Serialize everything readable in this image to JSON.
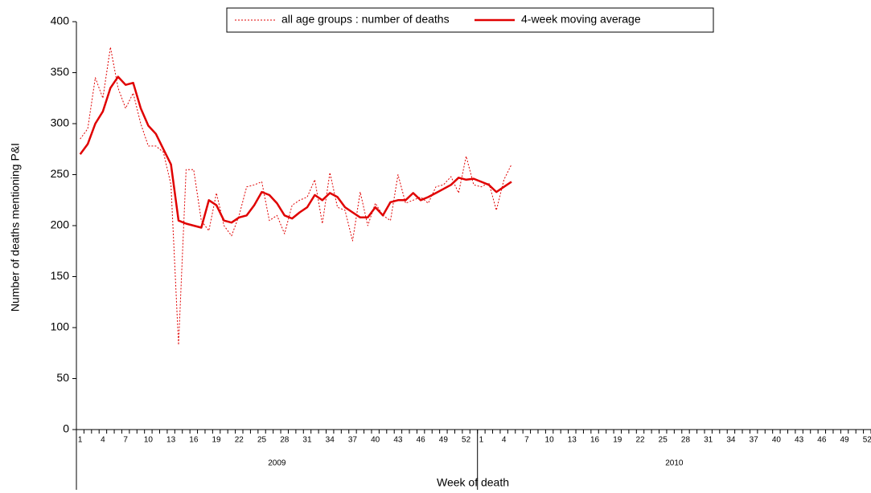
{
  "chart_data": {
    "type": "line",
    "y_label": "Number of deaths mentioning P&I",
    "x_label": "Week of death",
    "x_groups": [
      "2009",
      "2010"
    ],
    "x_group_sizes": [
      53,
      52
    ],
    "categories": [
      "1",
      null,
      null,
      "4",
      null,
      null,
      "7",
      null,
      null,
      "10",
      null,
      null,
      "13",
      null,
      null,
      "16",
      null,
      null,
      "19",
      null,
      null,
      "22",
      null,
      null,
      "25",
      null,
      null,
      "28",
      null,
      null,
      "31",
      null,
      null,
      "34",
      null,
      null,
      "37",
      null,
      null,
      "40",
      null,
      null,
      "43",
      null,
      null,
      "46",
      null,
      null,
      "49",
      null,
      null,
      "52",
      null,
      "1",
      null,
      null,
      "4",
      null,
      null,
      "7",
      null,
      null,
      "10",
      null,
      null,
      "13",
      null,
      null,
      "16",
      null,
      null,
      "19",
      null,
      null,
      "22",
      null,
      null,
      "25",
      null,
      null,
      "28",
      null,
      null,
      "31",
      null,
      null,
      "34",
      null,
      null,
      "37",
      null,
      null,
      "40",
      null,
      null,
      "43",
      null,
      null,
      "46",
      null,
      null,
      "49",
      null,
      null,
      "52"
    ],
    "series": [
      {
        "name": "all age groups : number of deaths",
        "color": "#e00000",
        "style": "dotted",
        "values": [
          285,
          295,
          345,
          325,
          375,
          335,
          315,
          330,
          300,
          278,
          278,
          272,
          240,
          83,
          255,
          255,
          205,
          195,
          232,
          200,
          190,
          210,
          238,
          240,
          243,
          205,
          210,
          192,
          220,
          225,
          228,
          245,
          202,
          252,
          218,
          215,
          185,
          233,
          200,
          222,
          210,
          205,
          250,
          222,
          225,
          228,
          222,
          238,
          240,
          248,
          232,
          268,
          240,
          238,
          242,
          215,
          245,
          260,
          null,
          null,
          null,
          null,
          null,
          null,
          null,
          null,
          null,
          null,
          null,
          null,
          null,
          null,
          null,
          null,
          null,
          null,
          null,
          null,
          null,
          null,
          null,
          null,
          null,
          null,
          null,
          null,
          null,
          null,
          null,
          null,
          null,
          null,
          null,
          null,
          null,
          null,
          null,
          null,
          null,
          null,
          null,
          null,
          null,
          null,
          null
        ]
      },
      {
        "name": "4-week moving average",
        "color": "#e00000",
        "style": "solid",
        "values": [
          270,
          280,
          300,
          312,
          335,
          346,
          338,
          340,
          315,
          298,
          290,
          275,
          260,
          205,
          202,
          200,
          198,
          225,
          220,
          205,
          203,
          208,
          210,
          220,
          233,
          230,
          222,
          210,
          207,
          213,
          218,
          230,
          225,
          232,
          228,
          218,
          213,
          208,
          208,
          218,
          210,
          223,
          225,
          225,
          232,
          225,
          228,
          232,
          236,
          240,
          247,
          245,
          246,
          243,
          240,
          233,
          238,
          243,
          null,
          null,
          null,
          null,
          null,
          null,
          null,
          null,
          null,
          null,
          null,
          null,
          null,
          null,
          null,
          null,
          null,
          null,
          null,
          null,
          null,
          null,
          null,
          null,
          null,
          null,
          null,
          null,
          null,
          null,
          null,
          null,
          null,
          null,
          null,
          null,
          null,
          null,
          null,
          null,
          null,
          null,
          null,
          null,
          null,
          null,
          null
        ]
      }
    ],
    "ylim": [
      0,
      400
    ],
    "yticks": [
      0,
      50,
      100,
      150,
      200,
      250,
      300,
      350,
      400
    ],
    "grid": false,
    "legend": "top"
  }
}
